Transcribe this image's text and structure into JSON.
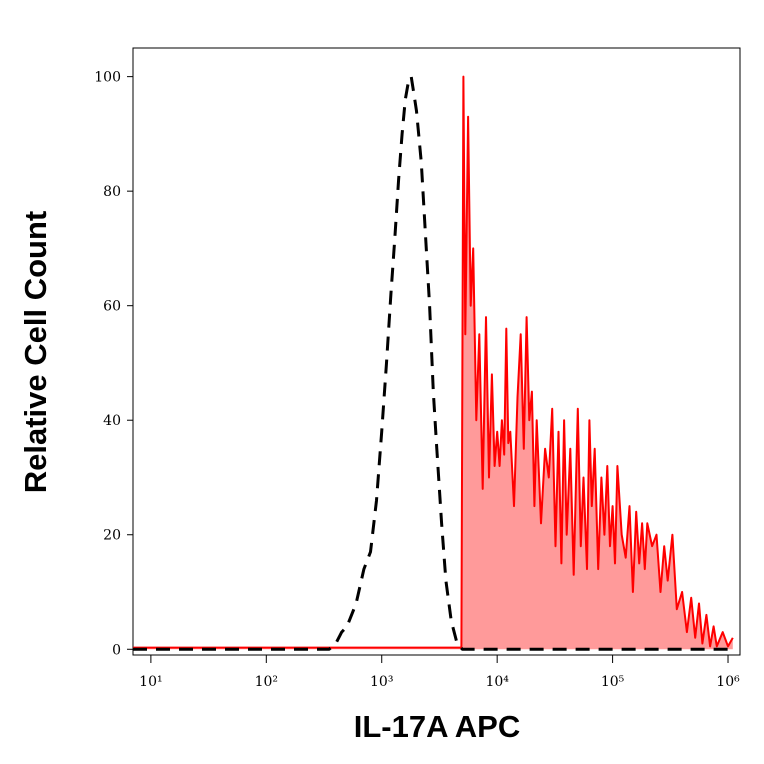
{
  "chart_data": {
    "type": "histogram-overlay",
    "x_label": "IL-17A APC",
    "y_label": "Relative Cell Count",
    "xlog": true,
    "xlim": [
      7,
      1270000
    ],
    "ylim": [
      -1,
      105
    ],
    "xticks": [
      {
        "value": 10,
        "label": "10¹"
      },
      {
        "value": 100,
        "label": "10²"
      },
      {
        "value": 1000,
        "label": "10³"
      },
      {
        "value": 10000,
        "label": "10⁴"
      },
      {
        "value": 100000,
        "label": "10⁵"
      },
      {
        "value": 1000000,
        "label": "10⁶"
      }
    ],
    "yticks": [
      0,
      20,
      40,
      60,
      80,
      100
    ],
    "series": [
      {
        "color": "#ff0000",
        "fill": "#ff9a9a",
        "line_style": "solid",
        "x": [
          7,
          100,
          1000,
          4900,
          5100,
          5300,
          5600,
          5900,
          6200,
          6600,
          7000,
          7500,
          8000,
          8500,
          9000,
          9500,
          10000,
          10500,
          11000,
          11500,
          12000,
          12500,
          13000,
          14000,
          15000,
          16000,
          17000,
          18000,
          19000,
          20000,
          21000,
          22000,
          24000,
          26000,
          28000,
          30000,
          32000,
          34000,
          36000,
          38000,
          40000,
          43000,
          46000,
          50000,
          53000,
          56000,
          60000,
          63000,
          66000,
          70000,
          75000,
          80000,
          85000,
          90000,
          95000,
          100000,
          105000,
          110000,
          120000,
          130000,
          140000,
          150000,
          160000,
          170000,
          180000,
          190000,
          200000,
          220000,
          240000,
          260000,
          280000,
          300000,
          330000,
          360000,
          400000,
          440000,
          480000,
          520000,
          560000,
          600000,
          650000,
          700000,
          750000,
          800000,
          900000,
          1000000,
          1100000
        ],
        "values": [
          0.3,
          0.3,
          0.3,
          0.3,
          100,
          55,
          93,
          60,
          70,
          40,
          55,
          28,
          58,
          30,
          48,
          32,
          38,
          32,
          40,
          34,
          56,
          36,
          38,
          25,
          44,
          55,
          35,
          58,
          40,
          45,
          25,
          40,
          22,
          35,
          30,
          42,
          18,
          38,
          15,
          40,
          20,
          35,
          13,
          42,
          18,
          30,
          14,
          40,
          25,
          35,
          14,
          30,
          20,
          32,
          18,
          25,
          15,
          32,
          20,
          16,
          25,
          10,
          24,
          15,
          22,
          14,
          22,
          18,
          20,
          10,
          18,
          12,
          20,
          7,
          10,
          3,
          9,
          2,
          8,
          1,
          6,
          0.5,
          4,
          0.5,
          3,
          0.5,
          2
        ]
      },
      {
        "color": "#000000",
        "line_style": "dashed",
        "x": [
          7,
          350,
          400,
          450,
          500,
          600,
          700,
          800,
          900,
          1000,
          1100,
          1200,
          1300,
          1400,
          1500,
          1600,
          1700,
          1800,
          1900,
          2000,
          2200,
          2400,
          2600,
          2800,
          3000,
          3300,
          3600,
          4000,
          4500,
          5000,
          1000000
        ],
        "values": [
          0,
          0,
          1,
          3,
          4,
          8,
          14,
          17,
          26,
          38,
          50,
          62,
          72,
          82,
          90,
          96,
          99,
          100,
          97,
          94,
          85,
          72,
          60,
          45,
          35,
          22,
          12,
          5,
          1,
          0,
          0
        ]
      }
    ]
  }
}
